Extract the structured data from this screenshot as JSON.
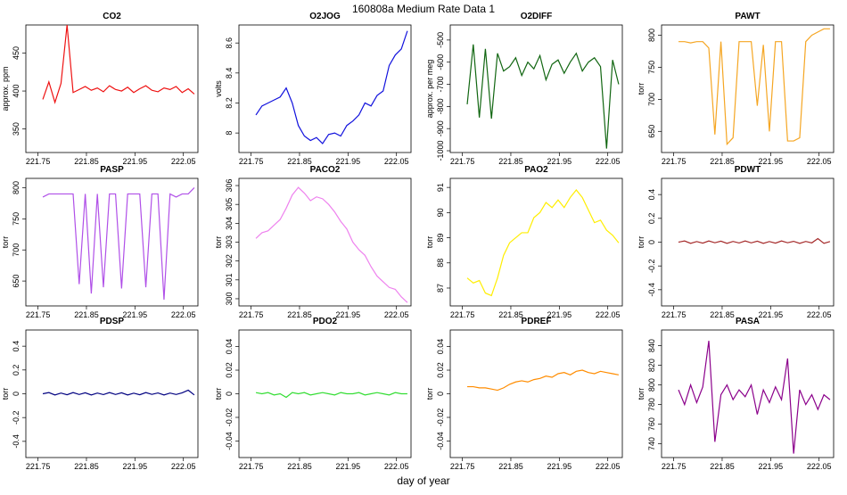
{
  "page_title": "160808a   Medium Rate Data 1",
  "xlabel": "day of year",
  "chart_data": [
    {
      "type": "line",
      "title": "CO2",
      "ylabel": "approx. ppm",
      "xlim": [
        221.725,
        222.08
      ],
      "xticks": [
        221.75,
        221.85,
        221.95,
        222.05
      ],
      "ylim": [
        319,
        487
      ],
      "yticks": [
        350,
        400,
        450
      ],
      "x": [
        221.76,
        221.7725,
        221.785,
        221.7975,
        221.81,
        221.8225,
        221.835,
        221.8475,
        221.86,
        221.8725,
        221.885,
        221.8975,
        221.91,
        221.9225,
        221.935,
        221.9475,
        221.96,
        221.9725,
        221.985,
        221.9975,
        222.01,
        222.0225,
        222.035,
        222.0475,
        222.06,
        222.0725
      ],
      "series": [
        {
          "color": "#ee1111",
          "values": [
            389,
            412,
            385,
            410,
            487,
            398,
            402,
            406,
            401,
            404,
            399,
            407,
            402,
            400,
            405,
            398,
            403,
            407,
            401,
            399,
            404,
            402,
            406,
            398,
            403,
            396
          ]
        }
      ]
    },
    {
      "type": "line",
      "title": "O2JOG",
      "ylabel": "volts",
      "xlim": [
        221.725,
        222.08
      ],
      "xticks": [
        221.75,
        221.85,
        221.95,
        222.05
      ],
      "ylim": [
        7.87,
        8.72
      ],
      "yticks": [
        8.0,
        8.2,
        8.4,
        8.6
      ],
      "x": [
        221.76,
        221.7725,
        221.785,
        221.7975,
        221.81,
        221.8225,
        221.835,
        221.8475,
        221.86,
        221.8725,
        221.885,
        221.8975,
        221.91,
        221.9225,
        221.935,
        221.9475,
        221.96,
        221.9725,
        221.985,
        221.9975,
        222.01,
        222.0225,
        222.035,
        222.0475,
        222.06,
        222.0725
      ],
      "series": [
        {
          "color": "#1111dd",
          "values": [
            8.12,
            8.18,
            8.2,
            8.22,
            8.24,
            8.3,
            8.2,
            8.05,
            7.98,
            7.95,
            7.97,
            7.93,
            7.99,
            8.0,
            7.98,
            8.05,
            8.08,
            8.12,
            8.2,
            8.18,
            8.25,
            8.28,
            8.45,
            8.52,
            8.56,
            8.68
          ]
        }
      ]
    },
    {
      "type": "line",
      "title": "O2DIFF",
      "ylabel": "approx. per meg",
      "xlim": [
        221.725,
        222.08
      ],
      "xticks": [
        221.75,
        221.85,
        221.95,
        222.05
      ],
      "ylim": [
        -1008,
        -432
      ],
      "yticks": [
        -1000,
        -900,
        -800,
        -700,
        -600,
        -500
      ],
      "x": [
        221.76,
        221.7725,
        221.785,
        221.7975,
        221.81,
        221.8225,
        221.835,
        221.8475,
        221.86,
        221.8725,
        221.885,
        221.8975,
        221.91,
        221.9225,
        221.935,
        221.9475,
        221.96,
        221.9725,
        221.985,
        221.9975,
        222.01,
        222.0225,
        222.035,
        222.0475,
        222.06,
        222.0725
      ],
      "series": [
        {
          "color": "#116611",
          "values": [
            -790,
            -520,
            -850,
            -540,
            -855,
            -560,
            -640,
            -620,
            -580,
            -660,
            -600,
            -630,
            -570,
            -680,
            -610,
            -590,
            -650,
            -600,
            -560,
            -640,
            -600,
            -580,
            -620,
            -990,
            -590,
            -700
          ]
        }
      ]
    },
    {
      "type": "line",
      "title": "PAWT",
      "ylabel": "torr",
      "xlim": [
        221.725,
        222.08
      ],
      "xticks": [
        221.75,
        221.85,
        221.95,
        222.05
      ],
      "ylim": [
        617,
        816
      ],
      "yticks": [
        650,
        700,
        750,
        800
      ],
      "x": [
        221.76,
        221.7725,
        221.785,
        221.7975,
        221.81,
        221.8225,
        221.835,
        221.8475,
        221.86,
        221.8725,
        221.885,
        221.8975,
        221.91,
        221.9225,
        221.935,
        221.9475,
        221.96,
        221.9725,
        221.985,
        221.9975,
        222.01,
        222.0225,
        222.035,
        222.0475,
        222.06,
        222.0725
      ],
      "series": [
        {
          "color": "#f5a623",
          "values": [
            790,
            790,
            788,
            790,
            790,
            780,
            645,
            790,
            630,
            640,
            790,
            790,
            790,
            690,
            785,
            650,
            790,
            790,
            635,
            635,
            640,
            790,
            800,
            805,
            810,
            810
          ]
        }
      ]
    },
    {
      "type": "line",
      "title": "PASP",
      "ylabel": "torr",
      "xlim": [
        221.725,
        222.08
      ],
      "xticks": [
        221.75,
        221.85,
        221.95,
        222.05
      ],
      "ylim": [
        610,
        815
      ],
      "yticks": [
        650,
        700,
        750,
        800
      ],
      "x": [
        221.76,
        221.7725,
        221.785,
        221.7975,
        221.81,
        221.8225,
        221.835,
        221.8475,
        221.86,
        221.8725,
        221.885,
        221.8975,
        221.91,
        221.9225,
        221.935,
        221.9475,
        221.96,
        221.9725,
        221.985,
        221.9975,
        222.01,
        222.0225,
        222.035,
        222.0475,
        222.06,
        222.0725
      ],
      "series": [
        {
          "color": "#b050e8",
          "values": [
            785,
            790,
            790,
            790,
            790,
            790,
            645,
            790,
            630,
            790,
            640,
            790,
            790,
            638,
            790,
            790,
            790,
            640,
            790,
            790,
            620,
            790,
            785,
            790,
            790,
            800
          ]
        }
      ]
    },
    {
      "type": "line",
      "title": "PACO2",
      "ylabel": "torr",
      "xlim": [
        221.725,
        222.08
      ],
      "xticks": [
        221.75,
        221.85,
        221.95,
        222.05
      ],
      "ylim": [
        299.62,
        306.38
      ],
      "yticks": [
        300,
        301,
        302,
        303,
        304,
        305,
        306
      ],
      "x": [
        221.76,
        221.7725,
        221.785,
        221.7975,
        221.81,
        221.8225,
        221.835,
        221.8475,
        221.86,
        221.8725,
        221.885,
        221.8975,
        221.91,
        221.9225,
        221.935,
        221.9475,
        221.96,
        221.9725,
        221.985,
        221.9975,
        222.01,
        222.0225,
        222.035,
        222.0475,
        222.06,
        222.0725
      ],
      "series": [
        {
          "color": "#ee82ee",
          "values": [
            303.2,
            303.5,
            303.6,
            303.9,
            304.2,
            304.8,
            305.5,
            305.9,
            305.6,
            305.2,
            305.4,
            305.3,
            305.0,
            304.6,
            304.1,
            303.7,
            303.0,
            302.6,
            302.3,
            301.7,
            301.2,
            300.9,
            300.6,
            300.5,
            300.1,
            299.8
          ]
        }
      ]
    },
    {
      "type": "line",
      "title": "PAO2",
      "ylabel": "torr",
      "xlim": [
        221.725,
        222.08
      ],
      "xticks": [
        221.75,
        221.85,
        221.95,
        222.05
      ],
      "ylim": [
        86.29,
        91.36
      ],
      "yticks": [
        87,
        88,
        89,
        90,
        91
      ],
      "x": [
        221.76,
        221.7725,
        221.785,
        221.7975,
        221.81,
        221.8225,
        221.835,
        221.8475,
        221.86,
        221.8725,
        221.885,
        221.8975,
        221.91,
        221.9225,
        221.935,
        221.9475,
        221.96,
        221.9725,
        221.985,
        221.9975,
        222.01,
        222.0225,
        222.035,
        222.0475,
        222.06,
        222.0725
      ],
      "series": [
        {
          "color": "#ffee00",
          "values": [
            87.4,
            87.2,
            87.3,
            86.8,
            86.7,
            87.4,
            88.3,
            88.8,
            89.0,
            89.2,
            89.2,
            89.8,
            90.0,
            90.4,
            90.2,
            90.5,
            90.2,
            90.6,
            90.9,
            90.6,
            90.1,
            89.6,
            89.7,
            89.3,
            89.1,
            88.8
          ]
        }
      ]
    },
    {
      "type": "line",
      "title": "PDWT",
      "ylabel": "torr",
      "xlim": [
        221.725,
        222.08
      ],
      "xticks": [
        221.75,
        221.85,
        221.95,
        222.05
      ],
      "ylim": [
        -0.536,
        0.536
      ],
      "yticks": [
        -0.4,
        -0.2,
        0.0,
        0.2,
        0.4
      ],
      "x": [
        221.76,
        221.7725,
        221.785,
        221.7975,
        221.81,
        221.8225,
        221.835,
        221.8475,
        221.86,
        221.8725,
        221.885,
        221.8975,
        221.91,
        221.9225,
        221.935,
        221.9475,
        221.96,
        221.9725,
        221.985,
        221.9975,
        222.01,
        222.0225,
        222.035,
        222.0475,
        222.06,
        222.0725
      ],
      "series": [
        {
          "color": "#a52a2a",
          "values": [
            0,
            0.01,
            -0.01,
            0.005,
            -0.008,
            0.01,
            -0.005,
            0.008,
            -0.01,
            0.006,
            -0.007,
            0.01,
            -0.006,
            0.008,
            -0.01,
            0.005,
            -0.008,
            0.01,
            -0.005,
            0.007,
            -0.01,
            0.006,
            -0.006,
            0.03,
            -0.01,
            0.005
          ]
        }
      ]
    },
    {
      "type": "line",
      "title": "PDSP",
      "ylabel": "torr",
      "xlim": [
        221.725,
        222.08
      ],
      "xticks": [
        221.75,
        221.85,
        221.95,
        222.05
      ],
      "ylim": [
        -0.536,
        0.536
      ],
      "yticks": [
        -0.4,
        -0.2,
        0.0,
        0.2,
        0.4
      ],
      "x": [
        221.76,
        221.7725,
        221.785,
        221.7975,
        221.81,
        221.8225,
        221.835,
        221.8475,
        221.86,
        221.8725,
        221.885,
        221.8975,
        221.91,
        221.9225,
        221.935,
        221.9475,
        221.96,
        221.9725,
        221.985,
        221.9975,
        222.01,
        222.0225,
        222.035,
        222.0475,
        222.06,
        222.0725
      ],
      "series": [
        {
          "color": "#000080",
          "values": [
            0,
            0.01,
            -0.01,
            0.006,
            -0.008,
            0.01,
            -0.006,
            0.008,
            -0.01,
            0.006,
            -0.007,
            0.01,
            -0.006,
            0.008,
            -0.01,
            0.005,
            -0.008,
            0.01,
            -0.005,
            0.007,
            -0.01,
            0.006,
            -0.006,
            0.008,
            0.03,
            -0.01
          ]
        }
      ]
    },
    {
      "type": "line",
      "title": "PDO2",
      "ylabel": "torr",
      "xlim": [
        221.725,
        222.08
      ],
      "xticks": [
        221.75,
        221.85,
        221.95,
        222.05
      ],
      "ylim": [
        -0.054,
        0.054
      ],
      "yticks": [
        -0.04,
        -0.02,
        0.0,
        0.02,
        0.04
      ],
      "x": [
        221.76,
        221.7725,
        221.785,
        221.7975,
        221.81,
        221.8225,
        221.835,
        221.8475,
        221.86,
        221.8725,
        221.885,
        221.8975,
        221.91,
        221.9225,
        221.935,
        221.9475,
        221.96,
        221.9725,
        221.985,
        221.9975,
        222.01,
        222.0225,
        222.035,
        222.0475,
        222.06,
        222.0725
      ],
      "series": [
        {
          "color": "#33dd33",
          "values": [
            0.001,
            0,
            0.001,
            -0.001,
            0,
            -0.003,
            0.001,
            0,
            0.001,
            -0.001,
            0,
            0.001,
            0,
            -0.001,
            0.001,
            0,
            0,
            0.001,
            -0.001,
            0,
            0.001,
            0,
            -0.001,
            0.001,
            0,
            0
          ]
        }
      ]
    },
    {
      "type": "line",
      "title": "PDREF",
      "ylabel": "torr",
      "xlim": [
        221.725,
        222.08
      ],
      "xticks": [
        221.75,
        221.85,
        221.95,
        222.05
      ],
      "ylim": [
        -0.054,
        0.054
      ],
      "yticks": [
        -0.04,
        -0.02,
        0.0,
        0.02,
        0.04
      ],
      "x": [
        221.76,
        221.7725,
        221.785,
        221.7975,
        221.81,
        221.8225,
        221.835,
        221.8475,
        221.86,
        221.8725,
        221.885,
        221.8975,
        221.91,
        221.9225,
        221.935,
        221.9475,
        221.96,
        221.9725,
        221.985,
        221.9975,
        222.01,
        222.0225,
        222.035,
        222.0475,
        222.06,
        222.0725
      ],
      "series": [
        {
          "color": "#ff8c00",
          "values": [
            0.006,
            0.006,
            0.005,
            0.005,
            0.004,
            0.003,
            0.005,
            0.008,
            0.01,
            0.011,
            0.01,
            0.012,
            0.013,
            0.015,
            0.014,
            0.017,
            0.018,
            0.016,
            0.019,
            0.02,
            0.018,
            0.017,
            0.019,
            0.018,
            0.017,
            0.016
          ]
        }
      ]
    },
    {
      "type": "line",
      "title": "PASA",
      "ylabel": "torr",
      "xlim": [
        221.725,
        222.08
      ],
      "xticks": [
        221.75,
        221.85,
        221.95,
        222.05
      ],
      "ylim": [
        726,
        856
      ],
      "yticks": [
        740,
        760,
        780,
        800,
        820,
        840
      ],
      "x": [
        221.76,
        221.7725,
        221.785,
        221.7975,
        221.81,
        221.8225,
        221.835,
        221.8475,
        221.86,
        221.8725,
        221.885,
        221.8975,
        221.91,
        221.9225,
        221.935,
        221.9475,
        221.96,
        221.9725,
        221.985,
        221.9975,
        222.01,
        222.0225,
        222.035,
        222.0475,
        222.06,
        222.0725
      ],
      "series": [
        {
          "color": "#8b008b",
          "values": [
            795,
            780,
            800,
            782,
            798,
            845,
            742,
            790,
            800,
            785,
            795,
            788,
            800,
            770,
            795,
            782,
            798,
            785,
            827,
            730,
            795,
            780,
            790,
            775,
            790,
            785
          ]
        }
      ]
    }
  ]
}
